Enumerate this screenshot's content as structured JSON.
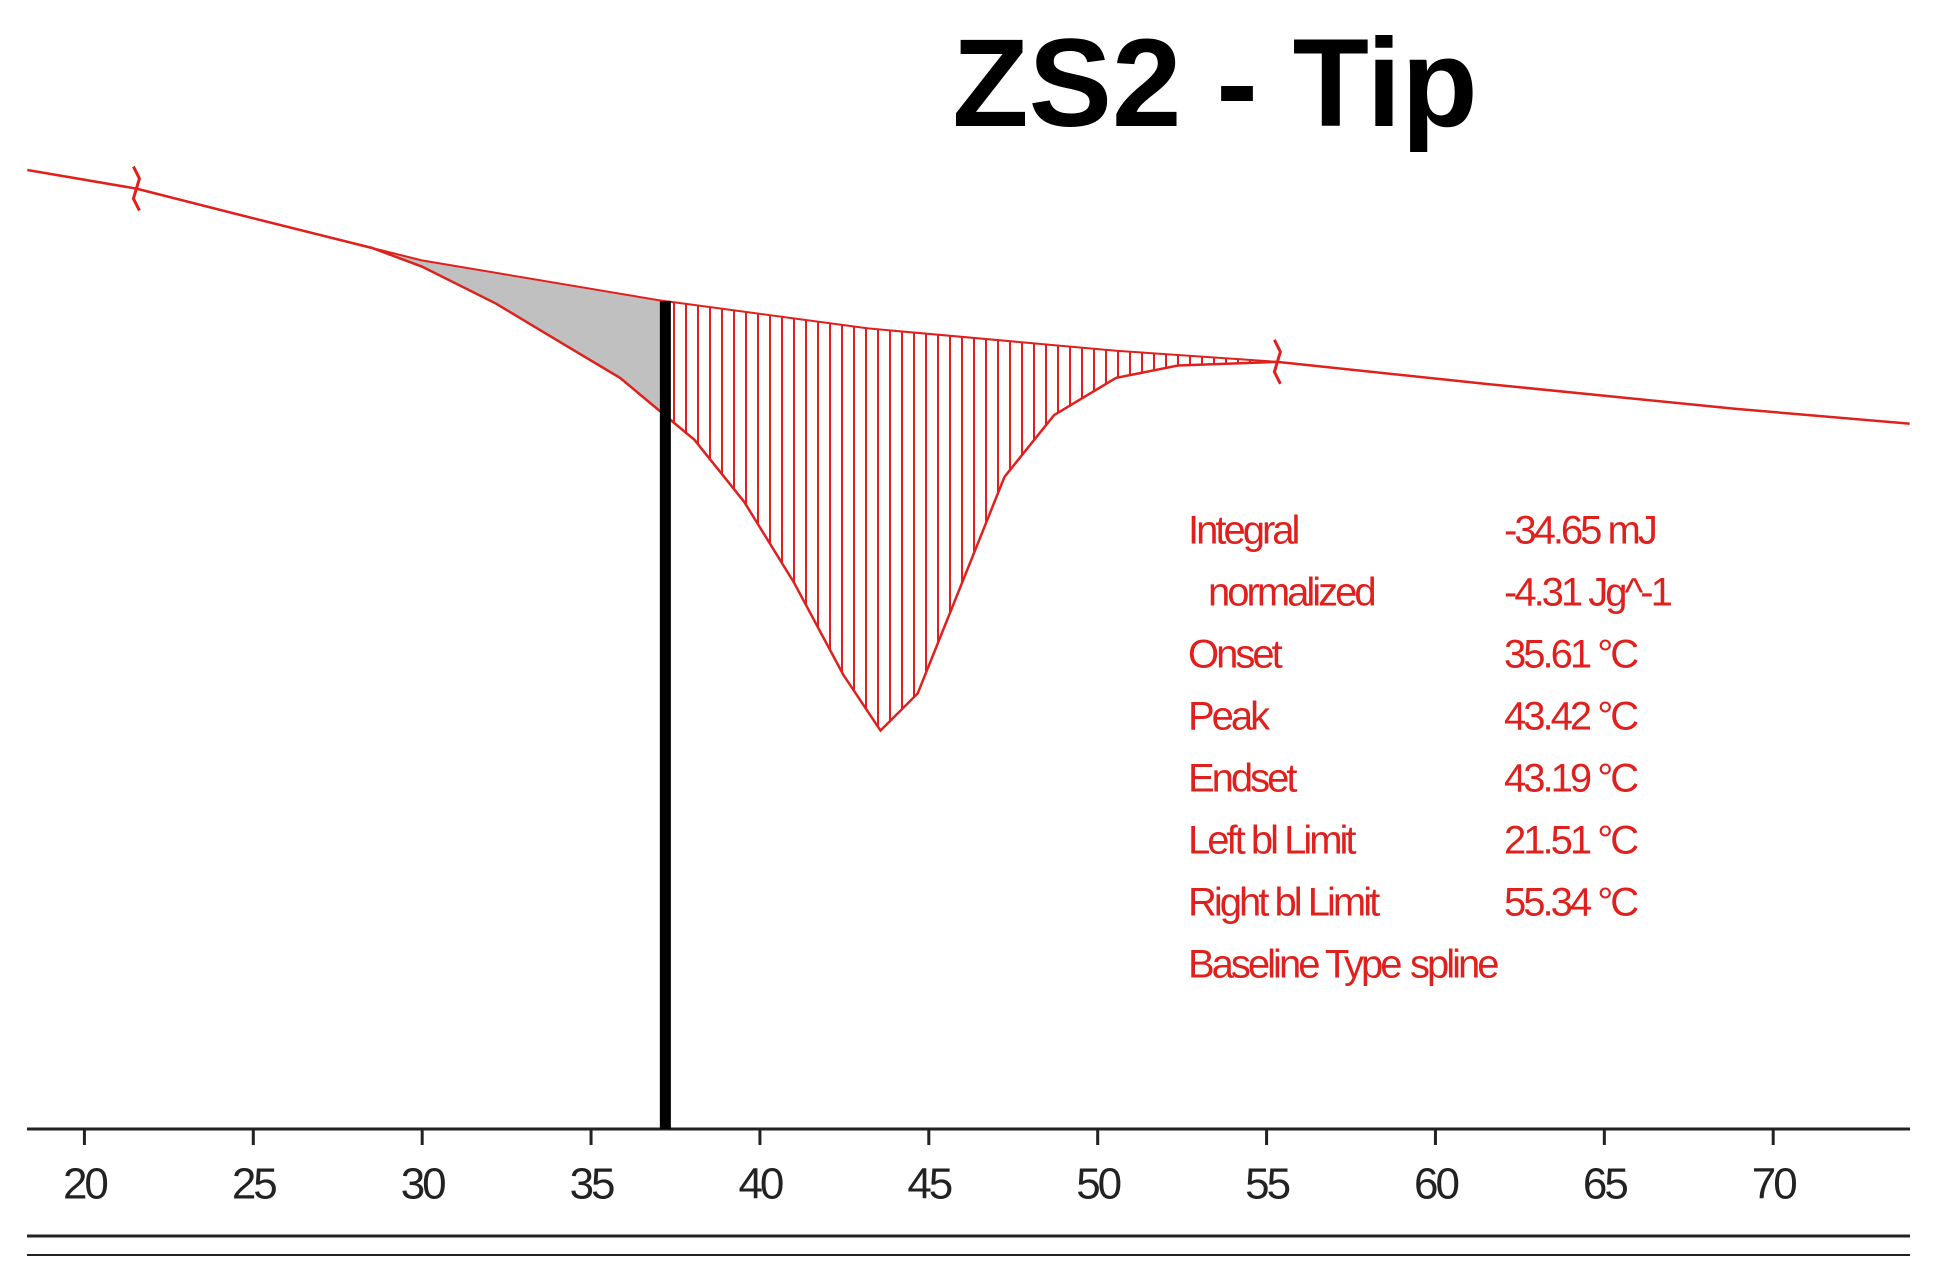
{
  "chart_data": {
    "type": "line",
    "title": "ZS2 - Tip",
    "x": [
      18.31,
      21.54,
      24.85,
      28.52,
      29.99,
      32.19,
      34.02,
      35.86,
      36.96,
      38.06,
      39.53,
      41.0,
      42.47,
      43.57,
      44.67,
      46.14,
      47.24,
      48.71,
      50.54,
      52.38,
      55.32,
      61.56,
      68.9,
      74.04
    ],
    "series": [
      {
        "name": "curve",
        "color": "#e0201c",
        "values": [
          0,
          -0.3,
          -0.76,
          -1.26,
          -1.56,
          -2.16,
          -2.76,
          -3.36,
          -3.86,
          -4.36,
          -5.36,
          -6.66,
          -8.16,
          -9.06,
          -8.46,
          -6.46,
          -4.96,
          -3.96,
          -3.36,
          -3.16,
          -3.1,
          -3.46,
          -3.86,
          -4.1
        ]
      }
    ],
    "baseline": {
      "x": [
        21.54,
        28.52,
        29.99,
        36.96,
        43.2,
        50.54,
        55.32
      ],
      "values": [
        -0.3,
        -1.26,
        -1.46,
        -2.1,
        -2.56,
        -2.92,
        -3.1
      ],
      "color": "#e0201c"
    },
    "vline_x": 37.2,
    "xlim": [
      18.3,
      74.05
    ],
    "ylim": [
      -15.5,
      2.7
    ],
    "xticks": [
      20,
      25,
      30,
      35,
      40,
      45,
      50,
      55,
      60,
      65,
      70
    ],
    "annotation": [
      [
        "Integral",
        "-34.65 mJ"
      ],
      [
        "normalized",
        "-4.31 Jg^-1"
      ],
      [
        "Onset",
        "35.61 °C"
      ],
      [
        "Peak",
        "43.42 °C"
      ],
      [
        "Endset",
        "43.19 °C"
      ],
      [
        "Left bl Limit",
        "21.51 °C"
      ],
      [
        "Right bl Limit",
        "55.34 °C"
      ],
      [
        "Baseline Type",
        "spline"
      ]
    ]
  }
}
